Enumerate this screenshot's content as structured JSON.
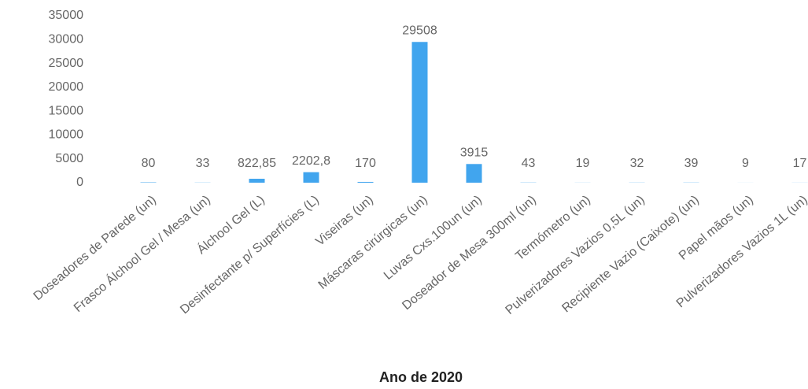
{
  "chart_data": {
    "type": "bar",
    "x_label": "Ano de 2020",
    "categories": [
      "Doseadores de Parede (un)",
      "Frasco Álchool Gel / Mesa (un)",
      "Álchool Gel (L)",
      "Desinfectante p/ Superfícies (L)",
      "Viseiras (un)",
      "Máscaras cirúrgicas (un)",
      "Luvas Cxs.100un (un)",
      "Doseador de Mesa 300ml (un)",
      "Termómetro (un)",
      "Pulverizadores Vazios 0,5L (un)",
      "Recipiente Vazio (Caixote) (un)",
      "Papel mãos (un)",
      "Pulverizadores Vazios 1L (un)"
    ],
    "values": [
      80,
      33,
      822.85,
      2202.8,
      170,
      29508,
      3915,
      43,
      19,
      32,
      39,
      9,
      17
    ],
    "value_labels": [
      "80",
      "33",
      "822,85",
      "2202,8",
      "170",
      "29508",
      "3915",
      "43",
      "19",
      "32",
      "39",
      "9",
      "17"
    ],
    "color": "#41a5ee",
    "ylim": [
      0,
      35000
    ],
    "yticks": [
      0,
      5000,
      10000,
      15000,
      20000,
      25000,
      30000,
      35000
    ],
    "grid": false
  }
}
